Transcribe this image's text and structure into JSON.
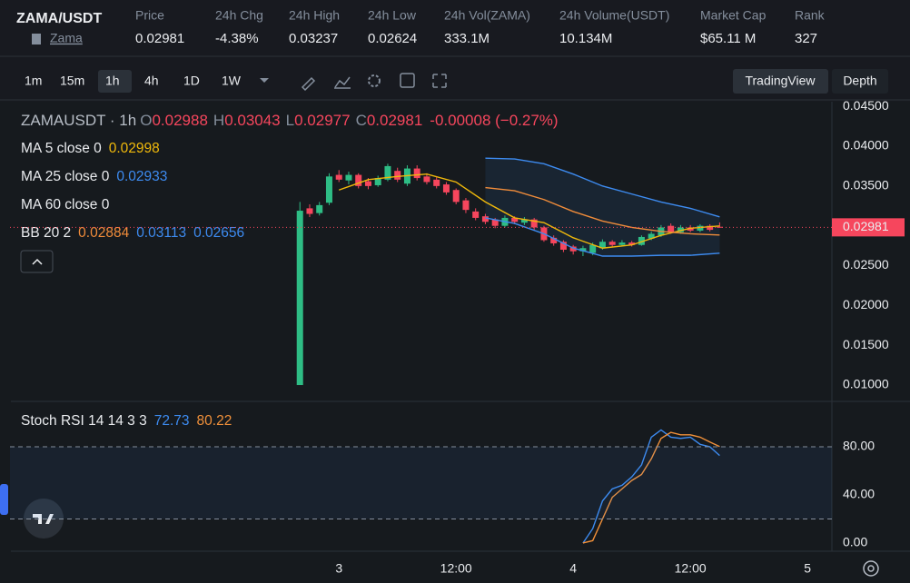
{
  "header": {
    "pair": "ZAMA/USDT",
    "link": "Zama",
    "stats": [
      {
        "label": "Price",
        "value": "0.02981"
      },
      {
        "label": "24h Chg",
        "value": "-4.38%"
      },
      {
        "label": "24h High",
        "value": "0.03237"
      },
      {
        "label": "24h Low",
        "value": "0.02624"
      },
      {
        "label": "24h Vol(ZAMA)",
        "value": "333.1M"
      },
      {
        "label": "24h Volume(USDT)",
        "value": "10.134M"
      },
      {
        "label": "Market Cap",
        "value": "$65.11 M"
      },
      {
        "label": "Rank",
        "value": "327"
      }
    ]
  },
  "toolbar": {
    "intervals": [
      "1m",
      "15m",
      "1h",
      "4h",
      "1D",
      "1W"
    ],
    "views": [
      "TradingView",
      "Depth"
    ]
  },
  "chart_data": [
    {
      "type": "candlestick",
      "title": "ZAMAUSDT · 1h",
      "ohlc_legend": [
        [
          "O",
          "0.02988"
        ],
        [
          "H",
          "0.03043"
        ],
        [
          "L",
          "0.02977"
        ],
        [
          "C",
          "0.02981"
        ]
      ],
      "change": "-0.00008 (−0.27%)",
      "up_color": "#2ebd85",
      "down_color": "#f6465d",
      "grid": false,
      "x": [
        -4,
        -3,
        -2,
        -1,
        0,
        1,
        2,
        3,
        4,
        5,
        6,
        7,
        8,
        9,
        10,
        11,
        12,
        13,
        14,
        15,
        16,
        17,
        18,
        19,
        20,
        21,
        22,
        23,
        24,
        25,
        26,
        27,
        28,
        29,
        30,
        31,
        32,
        33,
        34,
        35,
        36,
        37,
        38,
        39
      ],
      "open": [
        0.01,
        0.0322,
        0.0316,
        0.0329,
        0.0364,
        0.0357,
        0.0364,
        0.0356,
        0.0351,
        0.0358,
        0.0369,
        0.0353,
        0.0372,
        0.0362,
        0.0358,
        0.0352,
        0.0345,
        0.0332,
        0.0318,
        0.0312,
        0.0308,
        0.03,
        0.031,
        0.0304,
        0.0308,
        0.0298,
        0.0285,
        0.028,
        0.0274,
        0.0268,
        0.0266,
        0.0272,
        0.028,
        0.0276,
        0.0279,
        0.0276,
        0.0284,
        0.0288,
        0.03,
        0.0292,
        0.0298,
        0.0294,
        0.03,
        0.02988
      ],
      "high": [
        0.033,
        0.0327,
        0.033,
        0.0366,
        0.037,
        0.0368,
        0.0366,
        0.036,
        0.0363,
        0.0378,
        0.0373,
        0.0376,
        0.0376,
        0.0366,
        0.0361,
        0.0355,
        0.0347,
        0.0335,
        0.0322,
        0.0315,
        0.031,
        0.0313,
        0.0312,
        0.0311,
        0.031,
        0.03,
        0.0288,
        0.0282,
        0.0276,
        0.0275,
        0.0279,
        0.0283,
        0.0282,
        0.0282,
        0.0281,
        0.0288,
        0.0293,
        0.0301,
        0.0303,
        0.0301,
        0.0301,
        0.0302,
        0.0302,
        0.03043
      ],
      "low": [
        0.01,
        0.0311,
        0.0313,
        0.0326,
        0.0355,
        0.0352,
        0.0347,
        0.0346,
        0.0349,
        0.0356,
        0.0355,
        0.035,
        0.0357,
        0.0352,
        0.0347,
        0.0339,
        0.0327,
        0.0316,
        0.0307,
        0.0302,
        0.0297,
        0.0298,
        0.0302,
        0.0301,
        0.0295,
        0.028,
        0.0275,
        0.0267,
        0.0264,
        0.0262,
        0.0263,
        0.027,
        0.0273,
        0.0274,
        0.0274,
        0.0275,
        0.0282,
        0.0286,
        0.029,
        0.029,
        0.0292,
        0.0292,
        0.0293,
        0.02977
      ],
      "close": [
        0.0319,
        0.0315,
        0.0326,
        0.0362,
        0.0358,
        0.0364,
        0.035,
        0.035,
        0.036,
        0.0375,
        0.0358,
        0.0372,
        0.036,
        0.0355,
        0.035,
        0.0342,
        0.033,
        0.032,
        0.031,
        0.0305,
        0.03,
        0.031,
        0.0305,
        0.0308,
        0.0298,
        0.0282,
        0.0278,
        0.027,
        0.0268,
        0.0272,
        0.0276,
        0.028,
        0.0276,
        0.0279,
        0.0276,
        0.0286,
        0.029,
        0.0298,
        0.0292,
        0.0298,
        0.0294,
        0.03,
        0.0295,
        0.02981
      ],
      "indicators": [
        {
          "name": "MA 5 close 0",
          "readings": [
            {
              "label": "0.02998",
              "color": "#f0b90b",
              "x": [
                0,
                3,
                6,
                9,
                12,
                15,
                18,
                21,
                24,
                27,
                30,
                33,
                36,
                39
              ],
              "values": [
                0.0345,
                0.0358,
                0.0362,
                0.0365,
                0.0355,
                0.033,
                0.031,
                0.0304,
                0.0285,
                0.0272,
                0.0276,
                0.0288,
                0.0297,
                0.02998
              ]
            }
          ]
        },
        {
          "name": "MA 25 close 0",
          "readings": [
            {
              "label": "0.02933",
              "color": "#3d8bf0"
            }
          ]
        },
        {
          "name": "MA 60 close 0",
          "readings": []
        },
        {
          "name": "BB 20 2",
          "readings": [
            {
              "label": "0.02884",
              "color": "#f08c3a",
              "x": [
                15,
                18,
                21,
                24,
                27,
                30,
                33,
                36,
                39
              ],
              "values": [
                0.0348,
                0.0344,
                0.0333,
                0.0318,
                0.0306,
                0.0298,
                0.0293,
                0.029,
                0.02884
              ]
            },
            {
              "label": "0.03113",
              "color": "#3d8bf0",
              "x": [
                15,
                18,
                21,
                24,
                27,
                30,
                33,
                36,
                39
              ],
              "values": [
                0.0385,
                0.0384,
                0.0378,
                0.0365,
                0.035,
                0.034,
                0.033,
                0.0322,
                0.03113
              ]
            },
            {
              "label": "0.02656",
              "color": "#3d8bf0",
              "x": [
                15,
                18,
                21,
                24,
                27,
                30,
                33,
                36,
                39
              ],
              "values": [
                0.031,
                0.0303,
                0.029,
                0.0272,
                0.0262,
                0.0262,
                0.0263,
                0.0263,
                0.02656
              ]
            }
          ]
        }
      ],
      "current_price": {
        "value": 0.02981,
        "label": "0.02981"
      },
      "xlim": [
        -33.7,
        50.5
      ],
      "xticks": [
        {
          "value": 0,
          "label": "3"
        },
        {
          "value": 12,
          "label": "12:00"
        },
        {
          "value": 24,
          "label": "4"
        },
        {
          "value": 36,
          "label": "12:00"
        },
        {
          "value": 48,
          "label": "5"
        }
      ],
      "ylim": [
        0.00818,
        0.04559
      ],
      "yticks": [
        {
          "value": 0.045,
          "label": "0.04500"
        },
        {
          "value": 0.04,
          "label": "0.04000"
        },
        {
          "value": 0.035,
          "label": "0.03500"
        },
        {
          "value": 0.03,
          "label": "0.03000"
        },
        {
          "value": 0.025,
          "label": "0.02500"
        },
        {
          "value": 0.02,
          "label": "0.02000"
        },
        {
          "value": 0.015,
          "label": "0.01500"
        },
        {
          "value": 0.01,
          "label": "0.01000"
        }
      ]
    },
    {
      "type": "line",
      "grid": false,
      "indicators": [
        {
          "name": "Stoch RSI 14 14 3 3",
          "readings": [
            {
              "label": "72.73",
              "color": "#3d8bf0",
              "x": [
                25,
                26,
                27,
                28,
                29,
                30,
                31,
                32,
                33,
                34,
                35,
                36,
                37,
                38,
                39
              ],
              "values": [
                0,
                12,
                35,
                45,
                48,
                55,
                65,
                88,
                94,
                88,
                87,
                88,
                82,
                80,
                72.73
              ]
            },
            {
              "label": "80.22",
              "color": "#f0903a",
              "x": [
                25,
                26,
                27,
                28,
                29,
                30,
                31,
                32,
                33,
                34,
                35,
                36,
                37,
                38,
                39
              ],
              "values": [
                0,
                2,
                20,
                38,
                45,
                52,
                57,
                70,
                87,
                92,
                90,
                90,
                88,
                84,
                80.22
              ]
            }
          ]
        }
      ],
      "bands": [
        20,
        80
      ],
      "xlim": [
        -33.7,
        50.5
      ],
      "ylim": [
        -6.8,
        117
      ],
      "yticks": [
        {
          "value": 80,
          "label": "80.00"
        },
        {
          "value": 40,
          "label": "40.00"
        },
        {
          "value": 0,
          "label": "0.00"
        }
      ]
    }
  ]
}
